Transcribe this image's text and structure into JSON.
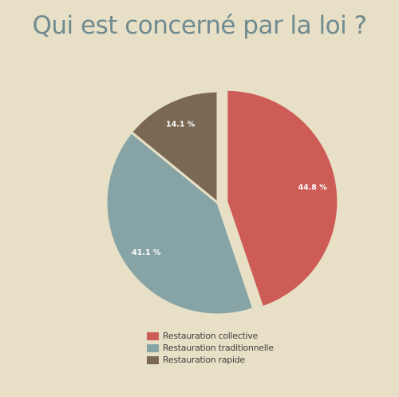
{
  "chart_data": {
    "type": "pie",
    "title": "Qui est concerné par la loi ?",
    "categories": [
      "Restauration collective",
      "Restauration traditionnelle",
      "Restauration rapide"
    ],
    "values": [
      44.8,
      41.1,
      14.1
    ],
    "value_labels": [
      "44.8 %",
      "41.1 %",
      "14.1 %"
    ],
    "colors": [
      "#cd5c56",
      "#86a4a6",
      "#7a6854"
    ],
    "start_angle_deg": 0,
    "direction": "clockwise",
    "exploded_slice": 0,
    "legend_position": "bottom"
  }
}
